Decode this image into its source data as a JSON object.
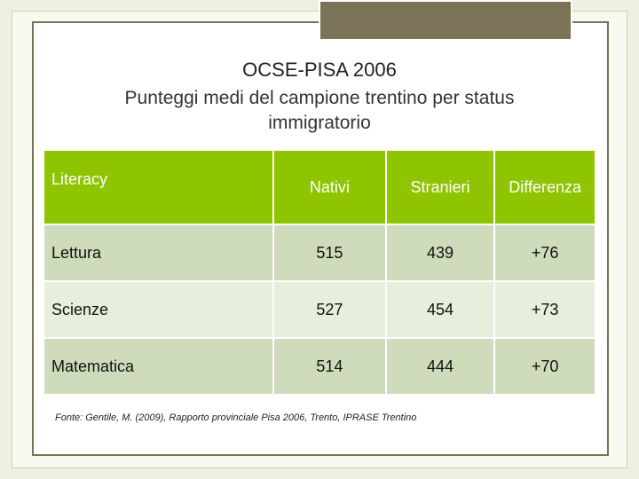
{
  "slide": {
    "title": "OCSE-PISA 2006",
    "subtitle": "Punteggi medi del campione trentino per status immigratorio"
  },
  "table": {
    "headers": [
      "Literacy",
      "Nativi",
      "Stranieri",
      "Differenza"
    ],
    "rows": [
      [
        "Lettura",
        "515",
        "439",
        "+76"
      ],
      [
        "Scienze",
        "527",
        "454",
        "+73"
      ],
      [
        "Matematica",
        "514",
        "444",
        "+70"
      ]
    ]
  },
  "source": "Fonte: Gentile, M. (2009), Rapporto provinciale Pisa 2006, Trento, IPRASE Trentino",
  "colors": {
    "header_green": "#8fc400",
    "row_dark": "#cfdcbb",
    "row_light": "#e7eedc",
    "frame_brown": "#7b7358"
  }
}
